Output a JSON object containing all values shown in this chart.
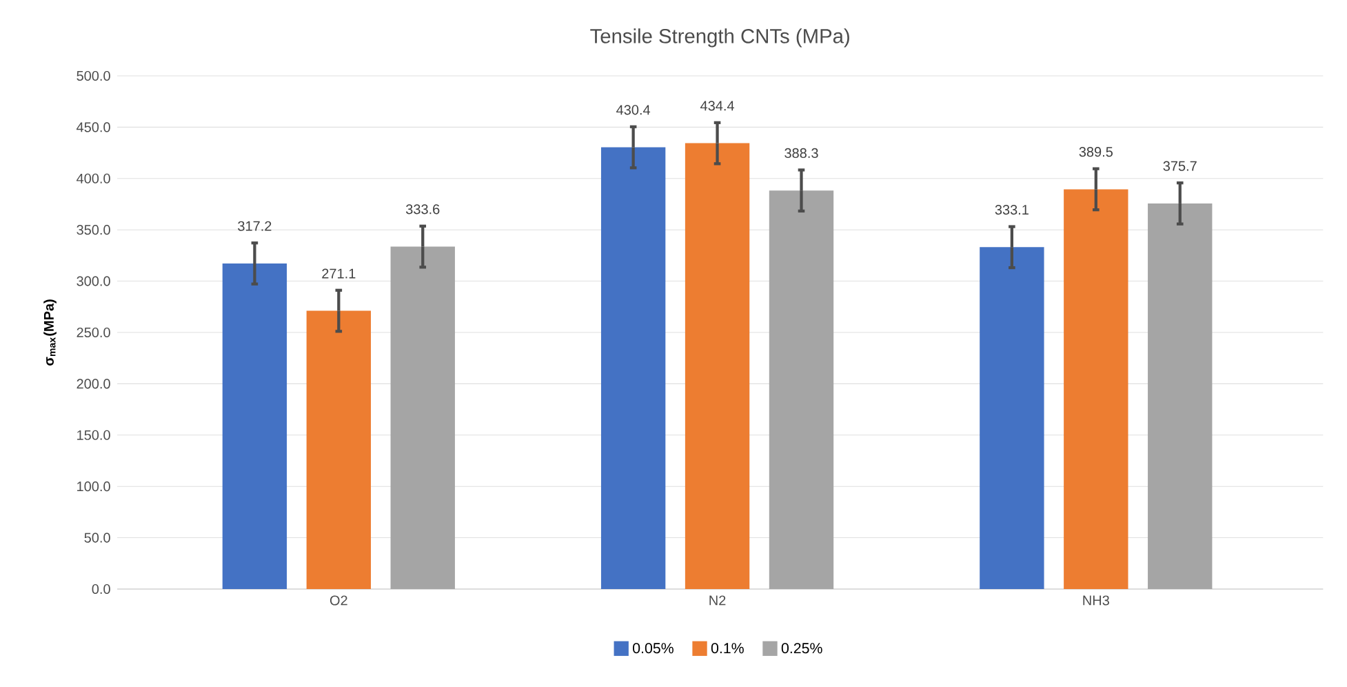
{
  "chart_data": {
    "type": "bar",
    "title": "Tensile Strength CNTs (MPa)",
    "ylabel": "σ$_{max}$(MPa)",
    "categories": [
      "O2",
      "N2",
      "NH3"
    ],
    "series": [
      {
        "name": "0.05%",
        "color": "#4472c4",
        "values": [
          317.2,
          430.4,
          333.1
        ],
        "errors": [
          20,
          20,
          20
        ],
        "value_labels": [
          "317.2",
          "430.4",
          "333.1"
        ]
      },
      {
        "name": "0.1%",
        "color": "#ed7d31",
        "values": [
          271.1,
          434.4,
          389.5
        ],
        "errors": [
          20,
          20,
          20
        ],
        "value_labels": [
          "271.1",
          "434.4",
          "389.5"
        ]
      },
      {
        "name": "0.25%",
        "color": "#a5a5a5",
        "values": [
          333.6,
          388.3,
          375.7
        ],
        "errors": [
          20,
          20,
          20
        ],
        "value_labels": [
          "333.6",
          "388.3",
          "375.7"
        ]
      }
    ],
    "ylim": [
      0,
      500
    ],
    "yticks": [
      {
        "value": 0,
        "label": "0.0"
      },
      {
        "value": 50,
        "label": "50.0"
      },
      {
        "value": 100,
        "label": "100.0"
      },
      {
        "value": 150,
        "label": "150.0"
      },
      {
        "value": 200,
        "label": "200.0"
      },
      {
        "value": 250,
        "label": "250.0"
      },
      {
        "value": 300,
        "label": "300.0"
      },
      {
        "value": 350,
        "label": "350.0"
      },
      {
        "value": 400,
        "label": "400.0"
      },
      {
        "value": 450,
        "label": "450.0"
      },
      {
        "value": 500,
        "label": "500.0"
      }
    ],
    "grid": "y",
    "legend": "bottom"
  }
}
